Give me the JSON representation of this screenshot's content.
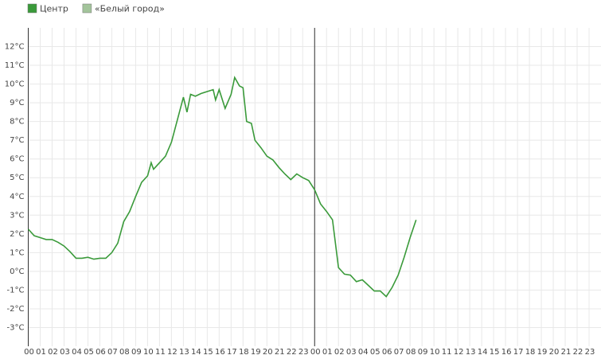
{
  "chart_data": {
    "type": "line",
    "x": [
      0,
      0.5,
      1,
      1.5,
      2,
      2.5,
      3,
      3.5,
      4,
      4.5,
      5,
      5.5,
      6,
      6.5,
      7,
      7.5,
      8,
      8.5,
      9,
      9.5,
      10,
      10.3,
      10.5,
      11,
      11.5,
      12,
      12.5,
      13,
      13.3,
      13.6,
      14,
      14.5,
      15,
      15.5,
      15.7,
      16,
      16.5,
      17,
      17.3,
      17.7,
      18,
      18.3,
      18.7,
      19,
      19.5,
      20,
      20.5,
      21,
      21.5,
      22,
      22.5,
      23,
      23.5,
      24,
      24.5,
      25,
      25.5,
      26,
      26.5,
      27,
      27.5,
      28,
      28.5,
      29,
      29.5,
      30,
      30.5,
      31,
      31.5,
      32,
      32.5
    ],
    "series": [
      {
        "name": "Центр",
        "color": "#3a9a3a",
        "values": [
          2.25,
          1.9,
          1.8,
          1.7,
          1.7,
          1.55,
          1.35,
          1.05,
          0.7,
          0.7,
          0.75,
          0.65,
          0.7,
          0.7,
          1.0,
          1.5,
          2.65,
          3.2,
          4.0,
          4.75,
          5.1,
          5.8,
          5.45,
          5.8,
          6.15,
          6.9,
          8.1,
          9.3,
          8.5,
          9.45,
          9.35,
          9.5,
          9.6,
          9.7,
          9.15,
          9.7,
          8.7,
          9.45,
          10.35,
          9.9,
          9.8,
          8.0,
          7.9,
          7.0,
          6.6,
          6.15,
          5.95,
          5.55,
          5.2,
          4.9,
          5.2,
          5.0,
          4.85,
          4.35,
          3.6,
          3.2,
          2.75,
          0.2,
          -0.15,
          -0.2,
          -0.55,
          -0.45,
          -0.75,
          -1.05,
          -1.05,
          -1.35,
          -0.85,
          -0.2,
          0.75,
          1.8,
          2.75
        ]
      },
      {
        "name": "«Белый город»",
        "color": "#a3c49b",
        "values": [
          null,
          null,
          null,
          null,
          null,
          null,
          null,
          null,
          null,
          null,
          null,
          null,
          null,
          null,
          null,
          null,
          null,
          null,
          null,
          null,
          null,
          null,
          null,
          null,
          null,
          null,
          null,
          null,
          null,
          null,
          null,
          null,
          null,
          null,
          null,
          null,
          null,
          null,
          null,
          null,
          null,
          null,
          null,
          null,
          null,
          null,
          null,
          null,
          null,
          null,
          null,
          null,
          null,
          null,
          null,
          null,
          null,
          null,
          null,
          null,
          null,
          null,
          null,
          null,
          null,
          null,
          null,
          null,
          null,
          null,
          null
        ]
      }
    ],
    "xlim": [
      0,
      48
    ],
    "xticks": [
      {
        "value": 0,
        "label": "00"
      },
      {
        "value": 1,
        "label": "01"
      },
      {
        "value": 2,
        "label": "02"
      },
      {
        "value": 3,
        "label": "03"
      },
      {
        "value": 4,
        "label": "04"
      },
      {
        "value": 5,
        "label": "05"
      },
      {
        "value": 6,
        "label": "06"
      },
      {
        "value": 7,
        "label": "07"
      },
      {
        "value": 8,
        "label": "08"
      },
      {
        "value": 9,
        "label": "09"
      },
      {
        "value": 10,
        "label": "10"
      },
      {
        "value": 11,
        "label": "11"
      },
      {
        "value": 12,
        "label": "12"
      },
      {
        "value": 13,
        "label": "13"
      },
      {
        "value": 14,
        "label": "14"
      },
      {
        "value": 15,
        "label": "15"
      },
      {
        "value": 16,
        "label": "16"
      },
      {
        "value": 17,
        "label": "17"
      },
      {
        "value": 18,
        "label": "18"
      },
      {
        "value": 19,
        "label": "19"
      },
      {
        "value": 20,
        "label": "20"
      },
      {
        "value": 21,
        "label": "21"
      },
      {
        "value": 22,
        "label": "22"
      },
      {
        "value": 23,
        "label": "23"
      },
      {
        "value": 24,
        "label": "00"
      },
      {
        "value": 25,
        "label": "01"
      },
      {
        "value": 26,
        "label": "02"
      },
      {
        "value": 27,
        "label": "03"
      },
      {
        "value": 28,
        "label": "04"
      },
      {
        "value": 29,
        "label": "05"
      },
      {
        "value": 30,
        "label": "06"
      },
      {
        "value": 31,
        "label": "07"
      },
      {
        "value": 32,
        "label": "08"
      },
      {
        "value": 33,
        "label": "09"
      },
      {
        "value": 34,
        "label": "10"
      },
      {
        "value": 35,
        "label": "11"
      },
      {
        "value": 36,
        "label": "12"
      },
      {
        "value": 37,
        "label": "13"
      },
      {
        "value": 38,
        "label": "14"
      },
      {
        "value": 39,
        "label": "15"
      },
      {
        "value": 40,
        "label": "16"
      },
      {
        "value": 41,
        "label": "17"
      },
      {
        "value": 42,
        "label": "18"
      },
      {
        "value": 43,
        "label": "19"
      },
      {
        "value": 44,
        "label": "20"
      },
      {
        "value": 45,
        "label": "21"
      },
      {
        "value": 46,
        "label": "22"
      },
      {
        "value": 47,
        "label": "23"
      }
    ],
    "ylim": [
      -4,
      13
    ],
    "yticks": [
      {
        "value": -3,
        "label": "-3°C"
      },
      {
        "value": -2,
        "label": "-2°C"
      },
      {
        "value": -1,
        "label": "-1°C"
      },
      {
        "value": 0,
        "label": "0°C"
      },
      {
        "value": 1,
        "label": "1°C"
      },
      {
        "value": 2,
        "label": "2°C"
      },
      {
        "value": 3,
        "label": "3°C"
      },
      {
        "value": 4,
        "label": "4°C"
      },
      {
        "value": 5,
        "label": "5°C"
      },
      {
        "value": 6,
        "label": "6°C"
      },
      {
        "value": 7,
        "label": "7°C"
      },
      {
        "value": 8,
        "label": "8°C"
      },
      {
        "value": 9,
        "label": "9°C"
      },
      {
        "value": 10,
        "label": "10°C"
      },
      {
        "value": 11,
        "label": "11°C"
      },
      {
        "value": 12,
        "label": "12°C"
      }
    ],
    "vline": 24,
    "grid": true
  }
}
